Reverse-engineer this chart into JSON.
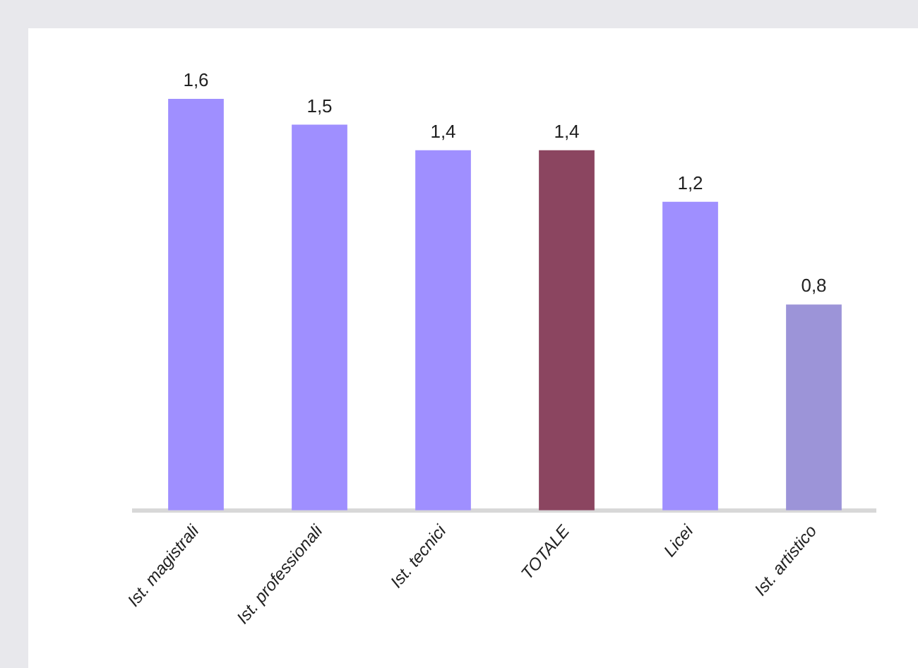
{
  "chart_data": {
    "type": "bar",
    "categories": [
      "Ist. magistrali",
      "Ist. professionali",
      "Ist. tecnici",
      "TOTALE",
      "Licei",
      "Ist. artistico"
    ],
    "values": [
      1.6,
      1.5,
      1.4,
      1.4,
      1.2,
      0.8
    ],
    "value_labels": [
      "1,6",
      "1,5",
      "1,4",
      "1,4",
      "1,2",
      "0,8"
    ],
    "colors": [
      "#9f8fff",
      "#9f8fff",
      "#9f8fff",
      "#8b4560",
      "#9f8fff",
      "#9c94d8"
    ],
    "grid": false,
    "legend": false
  }
}
